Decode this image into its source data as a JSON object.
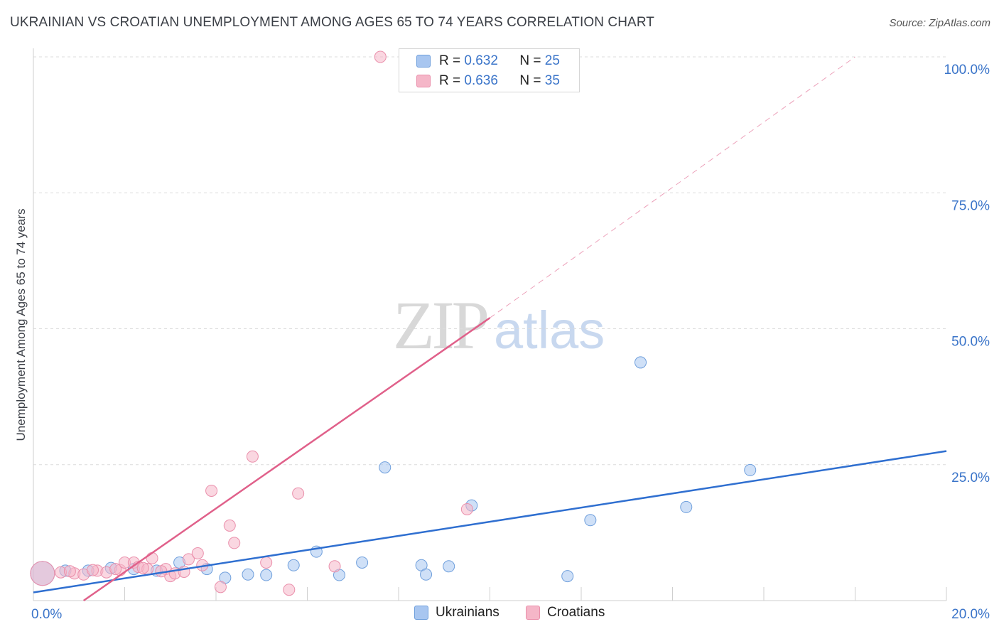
{
  "header": {
    "title": "UKRAINIAN VS CROATIAN UNEMPLOYMENT AMONG AGES 65 TO 74 YEARS CORRELATION CHART",
    "source": "Source: ZipAtlas.com"
  },
  "legend": {
    "rows": [
      {
        "r_label": "R = ",
        "r_value": "0.632",
        "n_label": "N = ",
        "n_value": "25",
        "color": "#a8c6f0"
      },
      {
        "r_label": "R = ",
        "r_value": "0.636",
        "n_label": "N = ",
        "n_value": "35",
        "color": "#f5b6c8"
      }
    ]
  },
  "watermark": {
    "zip": "ZIP",
    "atlas": "atlas"
  },
  "bottom_legend": [
    {
      "label": "Ukrainians",
      "color": "#a8c6f0"
    },
    {
      "label": "Croatians",
      "color": "#f5b6c8"
    }
  ],
  "chart_data": {
    "type": "scatter",
    "title": "UKRAINIAN VS CROATIAN UNEMPLOYMENT AMONG AGES 65 TO 74 YEARS CORRELATION CHART",
    "xlabel": "",
    "ylabel": "Unemployment Among Ages 65 to 74 years",
    "xlim": [
      0,
      20
    ],
    "ylim": [
      0,
      100
    ],
    "x_ticks": [
      "0.0%",
      "20.0%"
    ],
    "y_ticks": [
      {
        "value": 100,
        "label": "100.0%"
      },
      {
        "value": 75,
        "label": "75.0%"
      },
      {
        "value": 50,
        "label": "50.0%"
      },
      {
        "value": 25,
        "label": "25.0%"
      }
    ],
    "grid": true,
    "legend_position": "top-center",
    "series": [
      {
        "name": "Ukrainians",
        "color": "#a8c6f0",
        "stroke": "#6f9fdc",
        "trend_color": "#2f6fd0",
        "trend": {
          "x0": 0,
          "y0": 1.5,
          "x1": 20,
          "y1": 27.5,
          "dash_after": null
        },
        "points": [
          {
            "x": 0.2,
            "y": 5.0,
            "big": true
          },
          {
            "x": 0.7,
            "y": 5.5
          },
          {
            "x": 1.2,
            "y": 5.5
          },
          {
            "x": 1.7,
            "y": 6.0
          },
          {
            "x": 2.2,
            "y": 5.8
          },
          {
            "x": 2.7,
            "y": 5.5
          },
          {
            "x": 3.2,
            "y": 7.0
          },
          {
            "x": 3.8,
            "y": 5.8
          },
          {
            "x": 4.2,
            "y": 4.2
          },
          {
            "x": 4.7,
            "y": 4.8
          },
          {
            "x": 5.1,
            "y": 4.7
          },
          {
            "x": 5.7,
            "y": 6.5
          },
          {
            "x": 6.2,
            "y": 9.0
          },
          {
            "x": 6.7,
            "y": 4.7
          },
          {
            "x": 7.2,
            "y": 7.0
          },
          {
            "x": 7.7,
            "y": 24.5
          },
          {
            "x": 8.5,
            "y": 6.5
          },
          {
            "x": 8.6,
            "y": 4.8
          },
          {
            "x": 9.1,
            "y": 6.3
          },
          {
            "x": 9.6,
            "y": 17.5
          },
          {
            "x": 11.7,
            "y": 4.5
          },
          {
            "x": 12.2,
            "y": 14.8
          },
          {
            "x": 13.3,
            "y": 43.8
          },
          {
            "x": 14.3,
            "y": 17.2
          },
          {
            "x": 15.7,
            "y": 24.0
          }
        ]
      },
      {
        "name": "Croatians",
        "color": "#f5b6c8",
        "stroke": "#ea8fab",
        "trend_color": "#e0608a",
        "trend": {
          "x0": 1.1,
          "y0": 0,
          "x1": 10,
          "y1": 52,
          "dash_to_x": 18.0,
          "dash_to_y": 100
        },
        "points": [
          {
            "x": 0.2,
            "y": 5.0,
            "big": true
          },
          {
            "x": 0.6,
            "y": 5.2
          },
          {
            "x": 0.9,
            "y": 5.0
          },
          {
            "x": 1.1,
            "y": 4.8
          },
          {
            "x": 1.4,
            "y": 5.5
          },
          {
            "x": 1.6,
            "y": 5.2
          },
          {
            "x": 1.9,
            "y": 5.6
          },
          {
            "x": 2.0,
            "y": 7.0
          },
          {
            "x": 2.2,
            "y": 7.0
          },
          {
            "x": 2.3,
            "y": 6.2
          },
          {
            "x": 2.5,
            "y": 5.8
          },
          {
            "x": 2.6,
            "y": 7.8
          },
          {
            "x": 2.9,
            "y": 5.8
          },
          {
            "x": 3.0,
            "y": 4.5
          },
          {
            "x": 3.1,
            "y": 5.0
          },
          {
            "x": 3.3,
            "y": 5.3
          },
          {
            "x": 3.4,
            "y": 7.6
          },
          {
            "x": 3.6,
            "y": 8.7
          },
          {
            "x": 3.7,
            "y": 6.5
          },
          {
            "x": 3.9,
            "y": 20.2
          },
          {
            "x": 4.1,
            "y": 2.5
          },
          {
            "x": 4.3,
            "y": 13.8
          },
          {
            "x": 4.4,
            "y": 10.6
          },
          {
            "x": 4.8,
            "y": 26.5
          },
          {
            "x": 5.1,
            "y": 7.0
          },
          {
            "x": 5.6,
            "y": 2.0
          },
          {
            "x": 5.8,
            "y": 19.7
          },
          {
            "x": 6.6,
            "y": 6.3
          },
          {
            "x": 7.6,
            "y": 100.0
          },
          {
            "x": 9.5,
            "y": 16.8
          },
          {
            "x": 1.8,
            "y": 5.8
          },
          {
            "x": 2.4,
            "y": 6.0
          },
          {
            "x": 0.8,
            "y": 5.4
          },
          {
            "x": 1.3,
            "y": 5.6
          },
          {
            "x": 2.8,
            "y": 5.4
          }
        ]
      }
    ]
  }
}
